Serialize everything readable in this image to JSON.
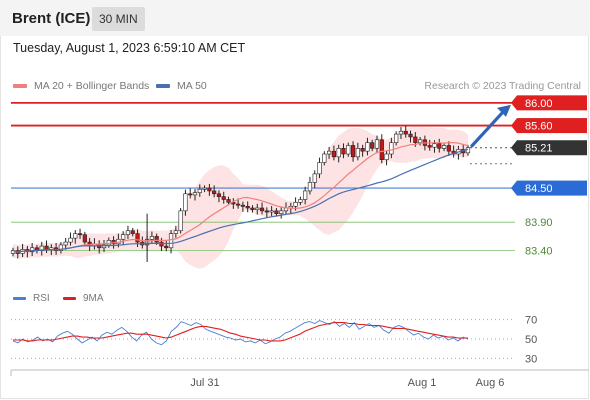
{
  "header": {
    "instrument": "Brent (ICE)",
    "interval": "30 MIN"
  },
  "datetime": "Tuesday, August 1, 2023 6:59:10 AM CET",
  "legend": {
    "ma20": "MA 20 + Bollinger Bands",
    "ma50": "MA 50",
    "copyright": "Research © 2023 Trading Central"
  },
  "colors": {
    "resistance": "#e02020",
    "support": "#4a7fd6",
    "target_green": "#7cbf6a",
    "ma20": "#f08080",
    "ma50": "#4a6fb0",
    "band_fill": "#fde0e0",
    "candle_up": "#ffffff",
    "candle_down": "#c01818",
    "rsi": "#4a7fd6",
    "rsi_ma": "#e02020",
    "arrow": "#2f64b8"
  },
  "chart_data": [
    {
      "type": "candlestick",
      "price_axis": {
        "ylim": [
          83.2,
          86.05
        ]
      },
      "x_labels": [
        "Jul 31",
        "Aug 1",
        "Aug 6"
      ],
      "levels": [
        {
          "value": 86.0,
          "label": "86.00",
          "kind": "resistance"
        },
        {
          "value": 85.6,
          "label": "85.60",
          "kind": "resistance"
        },
        {
          "value": 85.21,
          "label": "85.21",
          "kind": "last"
        },
        {
          "value": 84.5,
          "label": "84.50",
          "kind": "pivot"
        },
        {
          "value": 83.9,
          "label": "83.90",
          "kind": "support"
        },
        {
          "value": 83.4,
          "label": "83.40",
          "kind": "support"
        }
      ],
      "close": [
        83.4,
        83.35,
        83.42,
        83.38,
        83.45,
        83.4,
        83.48,
        83.42,
        83.45,
        83.4,
        83.5,
        83.55,
        83.62,
        83.7,
        83.68,
        83.55,
        83.48,
        83.52,
        83.45,
        83.5,
        83.58,
        83.52,
        83.6,
        83.68,
        83.75,
        83.7,
        83.55,
        83.5,
        83.6,
        83.65,
        83.55,
        83.48,
        83.45,
        83.7,
        83.75,
        84.1,
        84.4,
        84.38,
        84.42,
        84.48,
        84.5,
        84.45,
        84.4,
        84.35,
        84.3,
        84.25,
        84.22,
        84.2,
        84.18,
        84.15,
        84.12,
        84.15,
        84.1,
        84.08,
        84.1,
        84.05,
        84.1,
        84.15,
        84.18,
        84.25,
        84.3,
        84.45,
        84.6,
        84.75,
        84.95,
        85.1,
        85.15,
        85.05,
        85.2,
        85.1,
        85.25,
        85.05,
        85.2,
        85.15,
        85.3,
        85.2,
        85.35,
        85.0,
        85.1,
        85.3,
        85.45,
        85.5,
        85.45,
        85.4,
        85.3,
        85.35,
        85.25,
        85.22,
        85.28,
        85.2,
        85.25,
        85.15,
        85.1,
        85.18,
        85.12,
        85.21
      ],
      "ma20_end": 84.95,
      "ma50_end": 84.9,
      "target_arrow": {
        "from": 85.21,
        "to": 86.0
      }
    },
    {
      "type": "line",
      "title": "RSI",
      "series": [
        {
          "name": "RSI",
          "values": [
            48,
            46,
            50,
            47,
            49,
            52,
            48,
            50,
            47,
            53,
            56,
            58,
            55,
            50,
            46,
            49,
            52,
            48,
            54,
            57,
            55,
            59,
            62,
            58,
            52,
            48,
            54,
            57,
            50,
            46,
            44,
            48,
            58,
            62,
            68,
            66,
            64,
            67,
            65,
            60,
            58,
            56,
            54,
            52,
            51,
            49,
            50,
            47,
            48,
            46,
            49,
            45,
            47,
            50,
            52,
            56,
            58,
            61,
            64,
            67,
            68,
            66,
            69,
            67,
            65,
            68,
            63,
            66,
            62,
            67,
            60,
            63,
            66,
            62,
            64,
            59,
            56,
            62,
            64,
            62,
            58,
            54,
            56,
            52,
            50,
            54,
            51,
            53,
            49,
            51,
            48,
            52,
            50
          ]
        },
        {
          "name": "9MA",
          "values": [
            49,
            49,
            49,
            48,
            48,
            49,
            49,
            49,
            49,
            50,
            51,
            52,
            53,
            53,
            52,
            52,
            51,
            51,
            51,
            52,
            53,
            54,
            55,
            56,
            56,
            55,
            55,
            55,
            54,
            53,
            52,
            51,
            52,
            54,
            56,
            58,
            60,
            62,
            63,
            63,
            62,
            61,
            60,
            58,
            56,
            55,
            53,
            52,
            51,
            50,
            49,
            49,
            48,
            48,
            48,
            49,
            51,
            53,
            55,
            58,
            60,
            62,
            64,
            65,
            66,
            67,
            67,
            67,
            66,
            66,
            65,
            65,
            64,
            64,
            64,
            63,
            62,
            61,
            61,
            61,
            60,
            59,
            58,
            57,
            56,
            55,
            54,
            53,
            52,
            52,
            51,
            51,
            51
          ]
        }
      ],
      "y_ticks": [
        "70",
        "50",
        "30"
      ],
      "ylim": [
        20,
        80
      ]
    }
  ]
}
